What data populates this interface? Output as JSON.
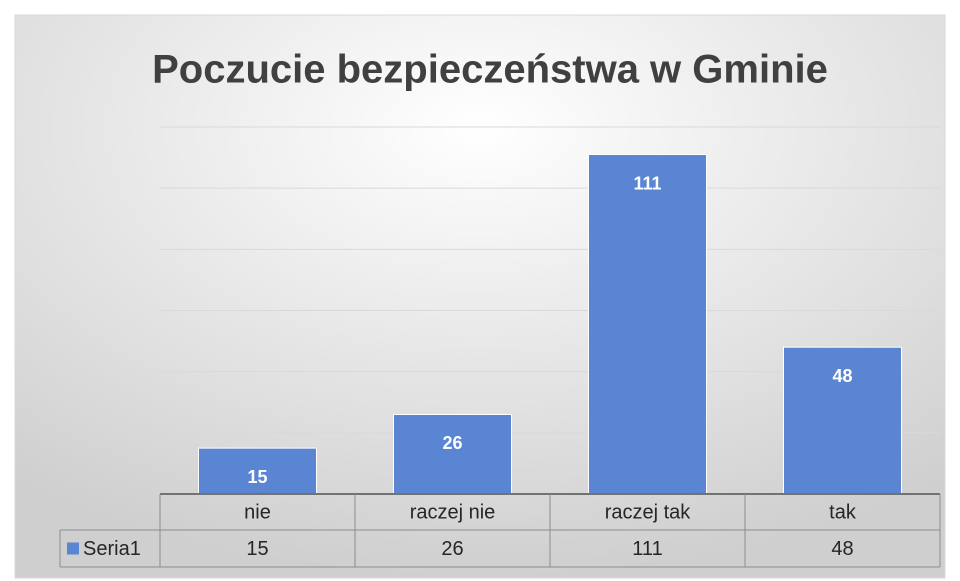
{
  "chart_data": {
    "type": "bar",
    "title": "Poczucie bezpieczeństwa w Gminie",
    "categories": [
      "nie",
      "raczej nie",
      "raczej tak",
      "tak"
    ],
    "series": [
      {
        "name": "Seria1",
        "color": "#5a85d3",
        "values": [
          15,
          26,
          111,
          48
        ]
      }
    ],
    "ylim": [
      0,
      120
    ],
    "yticks": [
      0,
      20,
      40,
      60,
      80,
      100,
      120
    ],
    "grid": true,
    "data_table": true
  }
}
